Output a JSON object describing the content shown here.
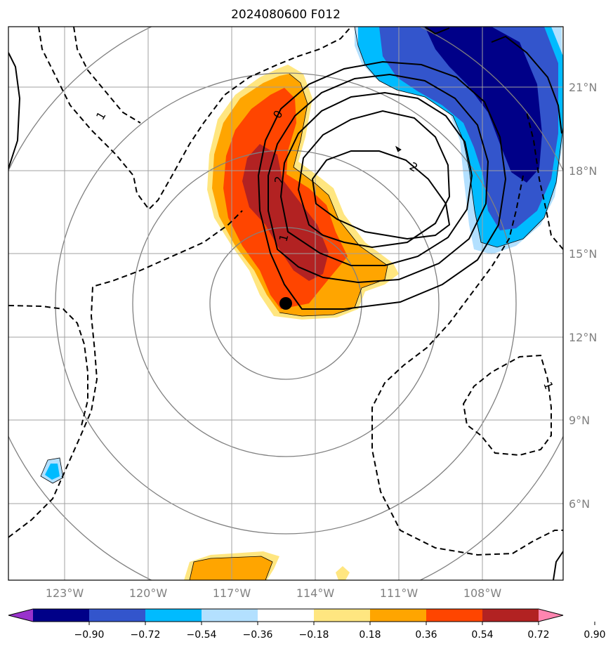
{
  "title": "2024080600 F012",
  "map": {
    "lon_ticks": [
      "123°W",
      "120°W",
      "117°W",
      "114°W",
      "111°W",
      "108°W"
    ],
    "lat_ticks": [
      "21°N",
      "18°N",
      "15°N",
      "12°N",
      "9°N",
      "6°N"
    ],
    "contour_labels": [
      "0",
      "2",
      "1",
      "2",
      "1",
      "1"
    ],
    "storm_center": {
      "lon": -115.0,
      "lat": 13.2
    }
  },
  "colorbar": {
    "levels": [
      "−0.90",
      "−0.72",
      "−0.54",
      "−0.36",
      "−0.18",
      "0.18",
      "0.36",
      "0.54",
      "0.72",
      "0.90"
    ],
    "colors": [
      "#9933cc",
      "#000088",
      "#3355cc",
      "#00bbff",
      "#b3e0ff",
      "#ffffff",
      "#ffe680",
      "#ffa500",
      "#ff4500",
      "#b22222",
      "#ff85b0"
    ]
  },
  "colors": {
    "deep_blue": "#000088",
    "mid_blue": "#3355cc",
    "cyan": "#00bbff",
    "light_blue": "#b3e0ff",
    "light_yellow": "#ffe680",
    "orange": "#ffa500",
    "red_orange": "#ff4500",
    "dark_red": "#b22222",
    "grid": "#a0a0a0"
  }
}
